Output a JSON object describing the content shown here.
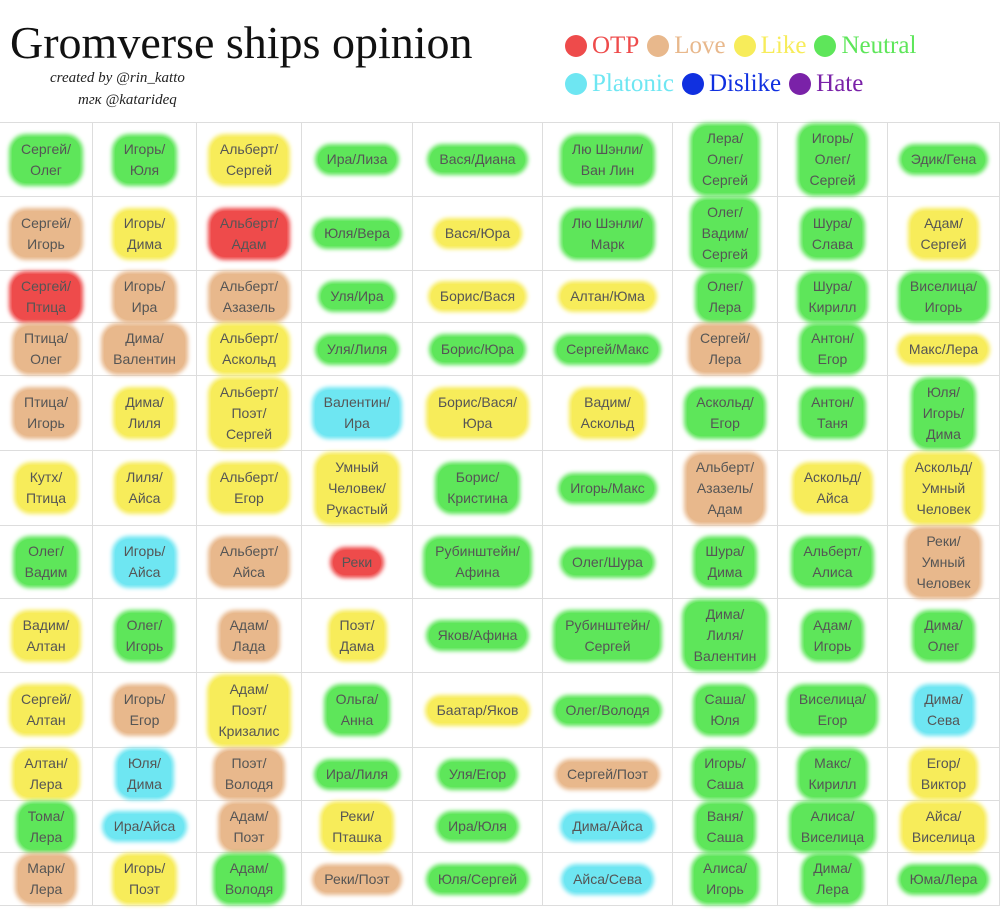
{
  "header": {
    "title": "Gromverse ships opinion",
    "credit": "created by @rin_katto",
    "channel": "тгк @katarideq"
  },
  "legend": [
    {
      "label": "OTP",
      "color": "#ee4b4b"
    },
    {
      "label": "Love",
      "color": "#e8b88c"
    },
    {
      "label": "Like",
      "color": "#f7ec5a"
    },
    {
      "label": "Neutral",
      "color": "#5ee65a"
    },
    {
      "label": "Platonic",
      "color": "#6ee6f2"
    },
    {
      "label": "Dislike",
      "color": "#1030e0"
    },
    {
      "label": "Hate",
      "color": "#7a22a8"
    }
  ],
  "grid": {
    "rows": [
      [
        {
          "text": "Сергей/\nОлег",
          "rating": "Neutral"
        },
        {
          "text": "Игорь/\nЮля",
          "rating": "Neutral"
        },
        {
          "text": "Альберт/\nСергей",
          "rating": "Like"
        },
        {
          "text": "Ира/Лиза",
          "rating": "Neutral"
        },
        {
          "text": "Вася/Диана",
          "rating": "Neutral"
        },
        {
          "text": "Лю Шэнли/\nВан Лин",
          "rating": "Neutral"
        },
        {
          "text": "Лера/\nОлег/\nСергей",
          "rating": "Neutral"
        },
        {
          "text": "Игорь/\nОлег/\nСергей",
          "rating": "Neutral"
        },
        {
          "text": "Эдик/Гена",
          "rating": "Neutral"
        }
      ],
      [
        {
          "text": "Сергей/\nИгорь",
          "rating": "Love"
        },
        {
          "text": "Игорь/\nДима",
          "rating": "Like"
        },
        {
          "text": "Альберт/\nАдам",
          "rating": "OTP"
        },
        {
          "text": "Юля/Вера",
          "rating": "Neutral"
        },
        {
          "text": "Вася/Юра",
          "rating": "Like"
        },
        {
          "text": "Лю Шэнли/\nМарк",
          "rating": "Neutral"
        },
        {
          "text": "Олег/\nВадим/\nСергей",
          "rating": "Neutral"
        },
        {
          "text": "Шура/\nСлава",
          "rating": "Neutral"
        },
        {
          "text": "Адам/\nСергей",
          "rating": "Like"
        }
      ],
      [
        {
          "text": "Сергей/\nПтица",
          "rating": "OTP"
        },
        {
          "text": "Игорь/\nИра",
          "rating": "Love"
        },
        {
          "text": "Альберт/\nАзазель",
          "rating": "Love"
        },
        {
          "text": "Уля/Ира",
          "rating": "Neutral"
        },
        {
          "text": "Борис/Вася",
          "rating": "Like"
        },
        {
          "text": "Алтан/Юма",
          "rating": "Like"
        },
        {
          "text": "Олег/\nЛера",
          "rating": "Neutral"
        },
        {
          "text": "Шура/\nКирилл",
          "rating": "Neutral"
        },
        {
          "text": "Виселица/\nИгорь",
          "rating": "Neutral"
        }
      ],
      [
        {
          "text": "Птица/\nОлег",
          "rating": "Love"
        },
        {
          "text": "Дима/\nВалентин",
          "rating": "Love"
        },
        {
          "text": "Альберт/\nАскольд",
          "rating": "Like"
        },
        {
          "text": "Уля/Лиля",
          "rating": "Neutral"
        },
        {
          "text": "Борис/Юра",
          "rating": "Neutral"
        },
        {
          "text": "Сергей/Макс",
          "rating": "Neutral"
        },
        {
          "text": "Сергей/\nЛера",
          "rating": "Love"
        },
        {
          "text": "Антон/\nЕгор",
          "rating": "Neutral"
        },
        {
          "text": "Макс/Лера",
          "rating": "Like"
        }
      ],
      [
        {
          "text": "Птица/\nИгорь",
          "rating": "Love"
        },
        {
          "text": "Дима/\nЛиля",
          "rating": "Like"
        },
        {
          "text": "Альберт/\nПоэт/\nСергей",
          "rating": "Like"
        },
        {
          "text": "Валентин/\nИра",
          "rating": "Platonic"
        },
        {
          "text": "Борис/Вася/\nЮра",
          "rating": "Like"
        },
        {
          "text": "Вадим/\nАскольд",
          "rating": "Like"
        },
        {
          "text": "Аскольд/\nЕгор",
          "rating": "Neutral"
        },
        {
          "text": "Антон/\nТаня",
          "rating": "Neutral"
        },
        {
          "text": "Юля/\nИгорь/\nДима",
          "rating": "Neutral"
        }
      ],
      [
        {
          "text": "Кутх/\nПтица",
          "rating": "Like"
        },
        {
          "text": "Лиля/\nАйса",
          "rating": "Like"
        },
        {
          "text": "Альберт/\nЕгор",
          "rating": "Like"
        },
        {
          "text": "Умный\nЧеловек/\nРукастый",
          "rating": "Like"
        },
        {
          "text": "Борис/\nКристина",
          "rating": "Neutral"
        },
        {
          "text": "Игорь/Макс",
          "rating": "Neutral"
        },
        {
          "text": "Альберт/\nАзазель/\nАдам",
          "rating": "Love"
        },
        {
          "text": "Аскольд/\nАйса",
          "rating": "Like"
        },
        {
          "text": "Аскольд/\nУмный\nЧеловек",
          "rating": "Like"
        }
      ],
      [
        {
          "text": "Олег/\nВадим",
          "rating": "Neutral"
        },
        {
          "text": "Игорь/\nАйса",
          "rating": "Platonic"
        },
        {
          "text": "Альберт/\nАйса",
          "rating": "Love"
        },
        {
          "text": "Реки",
          "rating": "OTP"
        },
        {
          "text": "Рубинштейн/\nАфина",
          "rating": "Neutral"
        },
        {
          "text": "Олег/Шура",
          "rating": "Neutral"
        },
        {
          "text": "Шура/\nДима",
          "rating": "Neutral"
        },
        {
          "text": "Альберт/\nАлиса",
          "rating": "Neutral"
        },
        {
          "text": "Реки/\nУмный\nЧеловек",
          "rating": "Love"
        }
      ],
      [
        {
          "text": "Вадим/\nАлтан",
          "rating": "Like"
        },
        {
          "text": "Олег/\nИгорь",
          "rating": "Neutral"
        },
        {
          "text": "Адам/\nЛада",
          "rating": "Love"
        },
        {
          "text": "Поэт/\nДама",
          "rating": "Like"
        },
        {
          "text": "Яков/Афина",
          "rating": "Neutral"
        },
        {
          "text": "Рубинштейн/\nСергей",
          "rating": "Neutral"
        },
        {
          "text": "Дима/\nЛиля/\nВалентин",
          "rating": "Neutral"
        },
        {
          "text": "Адам/\nИгорь",
          "rating": "Neutral"
        },
        {
          "text": "Дима/\nОлег",
          "rating": "Neutral"
        }
      ],
      [
        {
          "text": "Сергей/\nАлтан",
          "rating": "Like"
        },
        {
          "text": "Игорь/\nЕгор",
          "rating": "Love"
        },
        {
          "text": "Адам/\nПоэт/\nКризалис",
          "rating": "Like"
        },
        {
          "text": "Ольга/\nАнна",
          "rating": "Neutral"
        },
        {
          "text": "Баатар/Яков",
          "rating": "Like"
        },
        {
          "text": "Олег/Володя",
          "rating": "Neutral"
        },
        {
          "text": "Саша/\nЮля",
          "rating": "Neutral"
        },
        {
          "text": "Виселица/\nЕгор",
          "rating": "Neutral"
        },
        {
          "text": "Дима/\nСева",
          "rating": "Platonic"
        }
      ],
      [
        {
          "text": "Алтан/\nЛера",
          "rating": "Like"
        },
        {
          "text": "Юля/\nДима",
          "rating": "Platonic"
        },
        {
          "text": "Поэт/\nВолодя",
          "rating": "Love"
        },
        {
          "text": "Ира/Лиля",
          "rating": "Neutral"
        },
        {
          "text": "Уля/Егор",
          "rating": "Neutral"
        },
        {
          "text": "Сергей/Поэт",
          "rating": "Love"
        },
        {
          "text": "Игорь/\nСаша",
          "rating": "Neutral"
        },
        {
          "text": "Макс/\nКирилл",
          "rating": "Neutral"
        },
        {
          "text": "Егор/\nВиктор",
          "rating": "Like"
        }
      ],
      [
        {
          "text": "Тома/\nЛера",
          "rating": "Neutral"
        },
        {
          "text": "Ира/Айса",
          "rating": "Platonic"
        },
        {
          "text": "Адам/\nПоэт",
          "rating": "Love"
        },
        {
          "text": "Реки/\nПташка",
          "rating": "Like"
        },
        {
          "text": "Ира/Юля",
          "rating": "Neutral"
        },
        {
          "text": "Дима/Айса",
          "rating": "Platonic"
        },
        {
          "text": "Ваня/\nСаша",
          "rating": "Neutral"
        },
        {
          "text": "Алиса/\nВиселица",
          "rating": "Neutral"
        },
        {
          "text": "Айса/\nВиселица",
          "rating": "Like"
        }
      ],
      [
        {
          "text": "Марк/\nЛера",
          "rating": "Love"
        },
        {
          "text": "Игорь/\nПоэт",
          "rating": "Like"
        },
        {
          "text": "Адам/\nВолодя",
          "rating": "Neutral"
        },
        {
          "text": "Реки/Поэт",
          "rating": "Love"
        },
        {
          "text": "Юля/Сергей",
          "rating": "Neutral"
        },
        {
          "text": "Айса/Сева",
          "rating": "Platonic"
        },
        {
          "text": "Алиса/\nИгорь",
          "rating": "Neutral"
        },
        {
          "text": "Дима/\nЛера",
          "rating": "Neutral"
        },
        {
          "text": "Юма/Лера",
          "rating": "Neutral"
        }
      ]
    ]
  }
}
